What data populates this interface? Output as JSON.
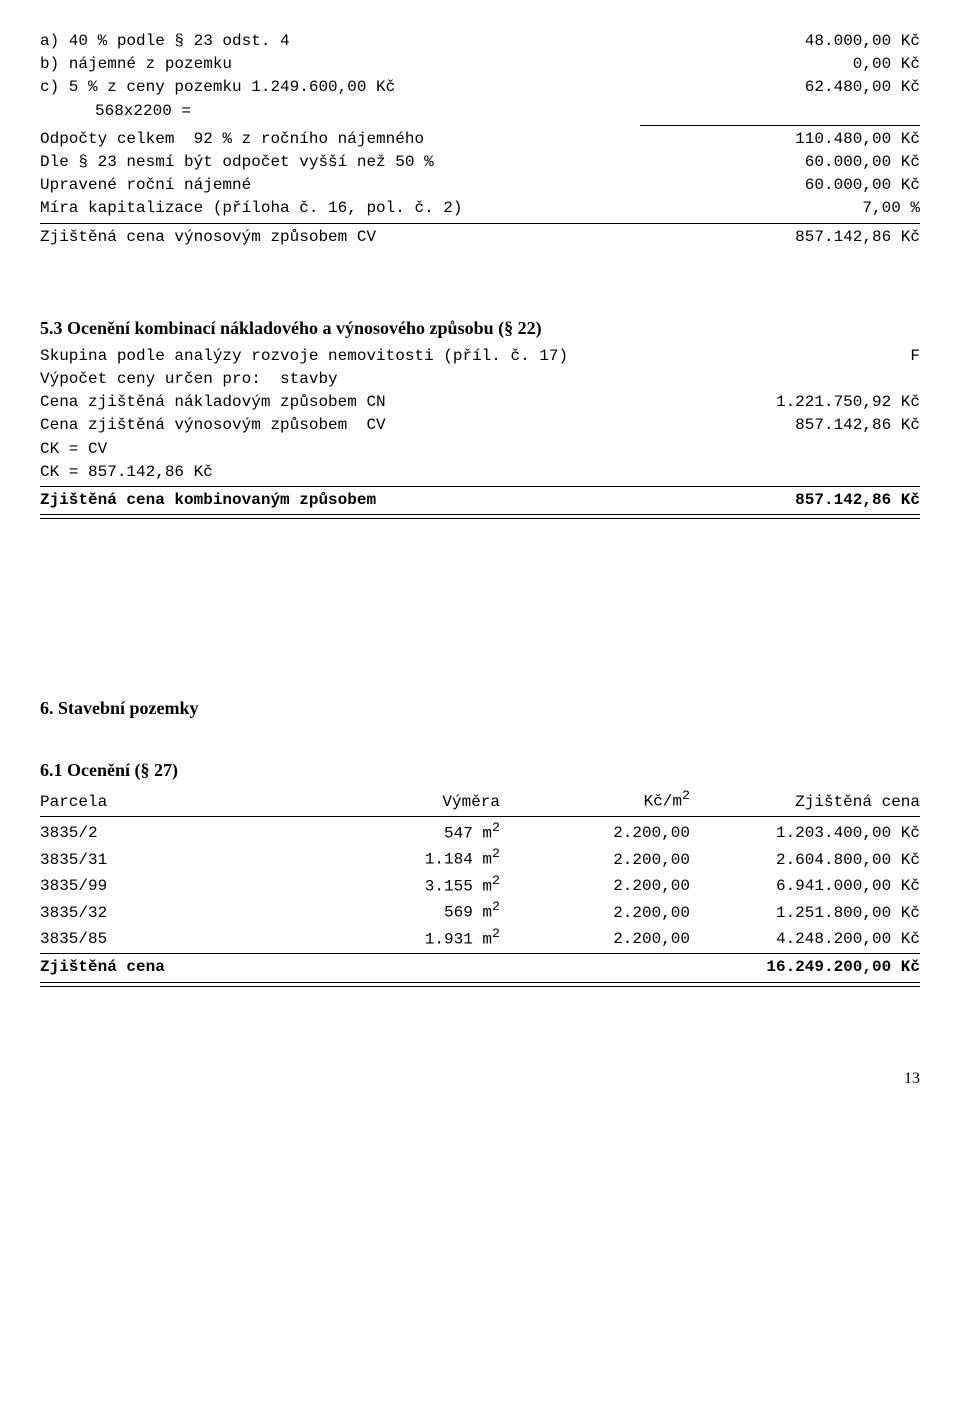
{
  "deductions": {
    "a_left": "a) 40 % podle § 23 odst. 4",
    "a_right": "48.000,00 Kč",
    "b_left": "b) nájemné z pozemku",
    "b_right": "0,00 Kč",
    "c_left": "c) 5 % z ceny pozemku 1.249.600,00 Kč",
    "c_right": "62.480,00 Kč",
    "c_sub": "568x2200 =",
    "odpocty_left": "Odpočty celkem  92 % z ročního nájemného",
    "odpocty_right": "110.480,00 Kč",
    "dle23_left": "Dle § 23 nesmí být odpočet vyšší než 50 %",
    "dle23_right": "60.000,00 Kč",
    "upravene_left": "Upravené roční nájemné",
    "upravene_right": "60.000,00 Kč",
    "mira_left": "Míra kapitalizace (příloha č. 16, pol. č. 2)",
    "mira_right": "7,00 %",
    "zjistena_left": "Zjištěná cena výnosovým způsobem CV",
    "zjistena_right": "857.142,86 Kč"
  },
  "section53": {
    "title": "5.3 Ocenění kombinací nákladového a výnosového způsobu (§ 22)",
    "line1_left": "Skupina podle analýzy rozvoje nemovitosti (příl. č. 17)",
    "line1_right": "F",
    "line2": "Výpočet ceny určen pro:  stavby",
    "cn_left": "Cena zjištěná nákladovým způsobem CN",
    "cn_right": "1.221.750,92 Kč",
    "cv_left": "Cena zjištěná výnosovým způsobem  CV",
    "cv_right": "857.142,86 Kč",
    "ck1": "CK = CV",
    "ck2": "CK = 857.142,86 Kč",
    "komb_left": "Zjištěná cena kombinovaným způsobem",
    "komb_right": "857.142,86 Kč"
  },
  "section6_title": "6. Stavební pozemky",
  "section61": {
    "title": "6.1 Ocenění (§ 27)",
    "header": {
      "c1": "Parcela",
      "c2": "Výměra",
      "c3": "Kč/m",
      "c3_sup": "2",
      "c4": "Zjištěná cena"
    },
    "rows": [
      {
        "c1": "3835/2",
        "c2": "547 m",
        "c3": "2.200,00",
        "c4": "1.203.400,00 Kč"
      },
      {
        "c1": "3835/31",
        "c2": "1.184 m",
        "c3": "2.200,00",
        "c4": "2.604.800,00 Kč"
      },
      {
        "c1": "3835/99",
        "c2": "3.155 m",
        "c3": "2.200,00",
        "c4": "6.941.000,00 Kč"
      },
      {
        "c1": "3835/32",
        "c2": "569 m",
        "c3": "2.200,00",
        "c4": "1.251.800,00 Kč"
      },
      {
        "c1": "3835/85",
        "c2": "1.931 m",
        "c3": "2.200,00",
        "c4": "4.248.200,00 Kč"
      }
    ],
    "total_left": "Zjištěná cena",
    "total_right": "16.249.200,00 Kč"
  },
  "page_number": "13"
}
